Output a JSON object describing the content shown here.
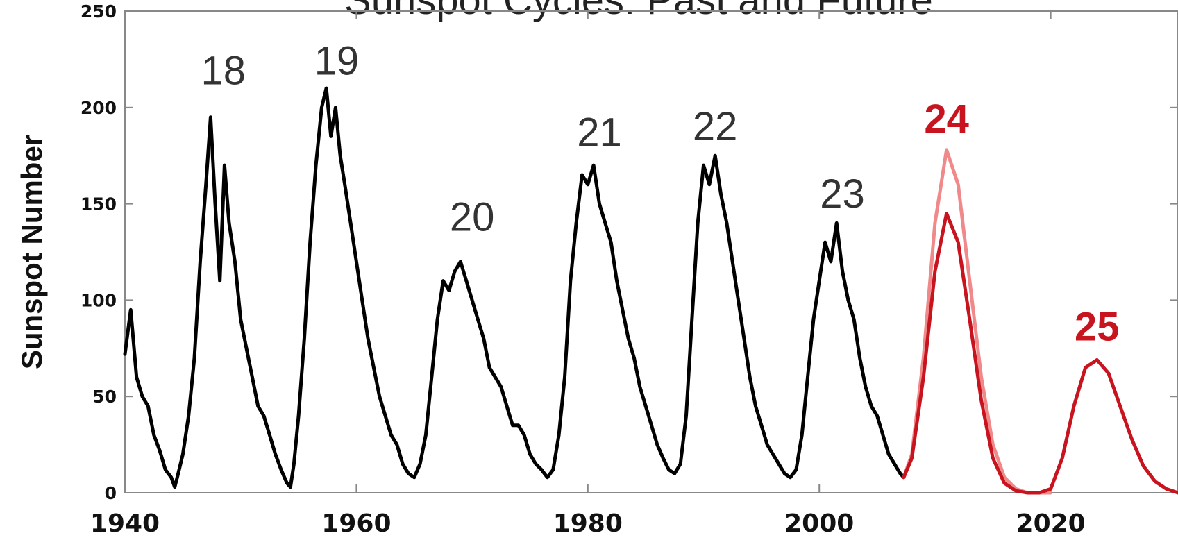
{
  "chart_data": {
    "type": "line",
    "title": "Sunspot Cycles: Past and Future",
    "xlabel": "",
    "ylabel": "Sunspot Number",
    "xlim": [
      1940,
      2031
    ],
    "ylim": [
      0,
      250
    ],
    "x_ticks": [
      1940,
      1960,
      1980,
      2000,
      2020
    ],
    "y_ticks": [
      0,
      50,
      100,
      150,
      200,
      250
    ],
    "grid": false,
    "legend": "none",
    "colors": {
      "observed": "#000000",
      "predicted_high": "#f08a8a",
      "predicted_low": "#c8141e",
      "past_labels": "#333333",
      "future_labels": "#c8141e"
    },
    "series": [
      {
        "role": "observed",
        "x": [
          1940.0,
          1940.5,
          1941.0,
          1941.5,
          1942.0,
          1942.5,
          1943.0,
          1943.5,
          1944.0,
          1944.3,
          1944.6,
          1945.0,
          1945.5,
          1946.0,
          1946.5,
          1947.0,
          1947.4,
          1947.8,
          1948.2,
          1948.6,
          1949.0,
          1949.5,
          1950.0,
          1950.5,
          1951.0,
          1951.5,
          1952.0,
          1952.5,
          1953.0,
          1953.5,
          1954.0,
          1954.3,
          1954.6,
          1955.0,
          1955.5,
          1956.0,
          1956.5,
          1957.0,
          1957.4,
          1957.8,
          1958.2,
          1958.6,
          1959.0,
          1959.5,
          1960.0,
          1960.5,
          1961.0,
          1961.5,
          1962.0,
          1962.5,
          1963.0,
          1963.5,
          1964.0,
          1964.5,
          1965.0,
          1965.5,
          1966.0,
          1966.5,
          1967.0,
          1967.5,
          1968.0,
          1968.5,
          1969.0,
          1969.5,
          1970.0,
          1970.5,
          1971.0,
          1971.5,
          1972.0,
          1972.5,
          1973.0,
          1973.5,
          1974.0,
          1974.5,
          1975.0,
          1975.5,
          1976.0,
          1976.5,
          1977.0,
          1977.5,
          1978.0,
          1978.5,
          1979.0,
          1979.5,
          1980.0,
          1980.5,
          1981.0,
          1981.5,
          1982.0,
          1982.5,
          1983.0,
          1983.5,
          1984.0,
          1984.5,
          1985.0,
          1985.5,
          1986.0,
          1986.5,
          1987.0,
          1987.5,
          1988.0,
          1988.5,
          1989.0,
          1989.5,
          1990.0,
          1990.5,
          1991.0,
          1991.5,
          1992.0,
          1992.5,
          1993.0,
          1993.5,
          1994.0,
          1994.5,
          1995.0,
          1995.5,
          1996.0,
          1996.5,
          1997.0,
          1997.5,
          1998.0,
          1998.5,
          1999.0,
          1999.5,
          2000.0,
          2000.5,
          2001.0,
          2001.5,
          2002.0,
          2002.5,
          2003.0,
          2003.5,
          2004.0,
          2004.5,
          2005.0,
          2005.5,
          2006.0,
          2006.5,
          2007.0,
          2007.3
        ],
        "y": [
          72,
          95,
          60,
          50,
          45,
          30,
          22,
          12,
          8,
          3,
          10,
          20,
          40,
          70,
          120,
          160,
          195,
          150,
          110,
          170,
          140,
          120,
          90,
          75,
          60,
          45,
          40,
          30,
          20,
          12,
          5,
          3,
          15,
          40,
          80,
          130,
          170,
          200,
          210,
          185,
          200,
          175,
          160,
          140,
          120,
          100,
          80,
          65,
          50,
          40,
          30,
          25,
          15,
          10,
          8,
          15,
          30,
          60,
          90,
          110,
          105,
          115,
          120,
          110,
          100,
          90,
          80,
          65,
          60,
          55,
          45,
          35,
          35,
          30,
          20,
          15,
          12,
          8,
          12,
          30,
          60,
          110,
          140,
          165,
          160,
          170,
          150,
          140,
          130,
          110,
          95,
          80,
          70,
          55,
          45,
          35,
          25,
          18,
          12,
          10,
          15,
          40,
          90,
          140,
          170,
          160,
          175,
          155,
          140,
          120,
          100,
          80,
          60,
          45,
          35,
          25,
          20,
          15,
          10,
          8,
          12,
          30,
          60,
          90,
          110,
          130,
          120,
          140,
          115,
          100,
          90,
          70,
          55,
          45,
          40,
          30,
          20,
          15,
          10,
          8
        ]
      },
      {
        "role": "predicted_high",
        "x": [
          2007.3,
          2008,
          2009,
          2010,
          2011,
          2012,
          2013,
          2014,
          2015,
          2016,
          2017,
          2018,
          2019,
          2020
        ],
        "y": [
          8,
          20,
          70,
          140,
          178,
          160,
          110,
          60,
          25,
          8,
          2,
          0,
          0,
          0
        ]
      },
      {
        "role": "predicted_low",
        "x": [
          2007.3,
          2008,
          2009,
          2010,
          2011,
          2012,
          2013,
          2014,
          2015,
          2016,
          2017,
          2018,
          2019,
          2020,
          2021,
          2022,
          2023,
          2024,
          2025,
          2026,
          2027,
          2028,
          2029,
          2030,
          2031
        ],
        "y": [
          8,
          18,
          60,
          115,
          145,
          130,
          90,
          48,
          18,
          5,
          1,
          0,
          0,
          2,
          18,
          45,
          65,
          69,
          62,
          45,
          28,
          14,
          6,
          2,
          0
        ]
      }
    ],
    "annotations": [
      {
        "text": "18",
        "x": 1948.5,
        "y": 212,
        "group": "past"
      },
      {
        "text": "19",
        "x": 1958.3,
        "y": 217,
        "group": "past"
      },
      {
        "text": "20",
        "x": 1970.0,
        "y": 136,
        "group": "past"
      },
      {
        "text": "21",
        "x": 1981.0,
        "y": 180,
        "group": "past"
      },
      {
        "text": "22",
        "x": 1991.0,
        "y": 183,
        "group": "past"
      },
      {
        "text": "23",
        "x": 2002.0,
        "y": 148,
        "group": "past"
      },
      {
        "text": "24",
        "x": 2011.0,
        "y": 187,
        "group": "future"
      },
      {
        "text": "25",
        "x": 2024.0,
        "y": 79,
        "group": "future"
      }
    ]
  }
}
